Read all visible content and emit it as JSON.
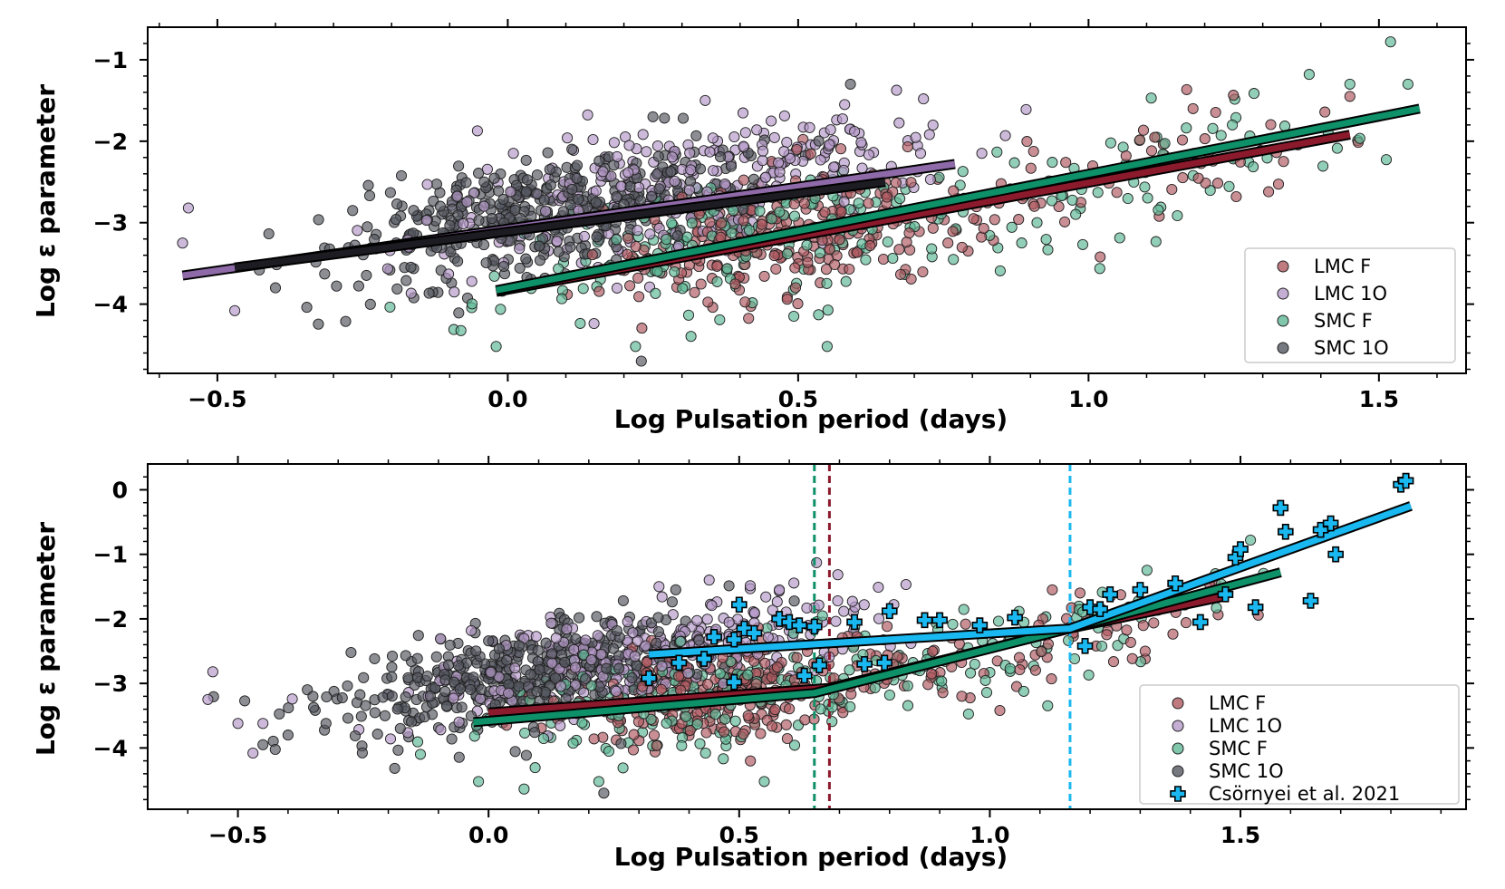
{
  "chart_data": [
    {
      "type": "scatter",
      "panel": "top",
      "xlabel": "Log Pulsation period (days)",
      "ylabel": "Log ε parameter",
      "xlim": [
        -0.62,
        1.65
      ],
      "ylim": [
        -4.85,
        -0.6
      ],
      "xticks": [
        -0.5,
        0.0,
        0.5,
        1.0,
        1.5
      ],
      "xtick_labels": [
        "−0.5",
        "0.0",
        "0.5",
        "1.0",
        "1.5"
      ],
      "yticks": [
        -1,
        -2,
        -3,
        -4
      ],
      "ytick_labels": [
        "−1",
        "−2",
        "−3",
        "−4"
      ],
      "legend_position": "lower-right",
      "series": [
        {
          "name": "LMC F",
          "color": "#b05a62",
          "clouds": [
            {
              "cx": 0.45,
              "cy": -3.15,
              "sx": 0.14,
              "sy": 0.38,
              "n": 240
            },
            {
              "cx": 0.85,
              "cy": -2.7,
              "sx": 0.18,
              "sy": 0.32,
              "n": 70
            },
            {
              "cx": 1.25,
              "cy": -2.1,
              "sx": 0.12,
              "sy": 0.3,
              "n": 25
            }
          ],
          "points": [
            [
              1.02,
              -3.42
            ],
            [
              1.18,
              -1.6
            ],
            [
              1.31,
              -2.62
            ],
            [
              1.45,
              -1.45
            ]
          ]
        },
        {
          "name": "LMC 1O",
          "color": "#b59ac9",
          "clouds": [
            {
              "cx": 0.25,
              "cy": -2.65,
              "sx": 0.2,
              "sy": 0.38,
              "n": 260
            },
            {
              "cx": 0.55,
              "cy": -2.2,
              "sx": 0.14,
              "sy": 0.3,
              "n": 60
            }
          ],
          "points": [
            [
              -0.55,
              -2.82
            ],
            [
              -0.56,
              -3.25
            ],
            [
              -0.47,
              -4.08
            ],
            [
              0.34,
              -1.5
            ],
            [
              0.58,
              -1.55
            ],
            [
              0.59,
              -1.85
            ]
          ]
        },
        {
          "name": "SMC F",
          "color": "#5fb896",
          "clouds": [
            {
              "cx": 0.35,
              "cy": -3.25,
              "sx": 0.2,
              "sy": 0.42,
              "n": 150
            },
            {
              "cx": 0.8,
              "cy": -2.85,
              "sx": 0.2,
              "sy": 0.4,
              "n": 70
            },
            {
              "cx": 1.25,
              "cy": -2.05,
              "sx": 0.16,
              "sy": 0.35,
              "n": 35
            }
          ],
          "points": [
            [
              -0.02,
              -4.52
            ],
            [
              0.22,
              -4.52
            ],
            [
              0.55,
              -4.52
            ],
            [
              1.38,
              -1.18
            ],
            [
              1.52,
              -0.78
            ],
            [
              1.45,
              -1.3
            ],
            [
              1.55,
              -1.3
            ]
          ]
        },
        {
          "name": "SMC 1O",
          "color": "#555861",
          "clouds": [
            {
              "cx": 0.0,
              "cy": -2.95,
              "sx": 0.16,
              "sy": 0.38,
              "n": 320
            },
            {
              "cx": 0.22,
              "cy": -2.6,
              "sx": 0.13,
              "sy": 0.35,
              "n": 90
            }
          ],
          "points": [
            [
              0.23,
              -4.7
            ],
            [
              0.25,
              -1.7
            ],
            [
              0.59,
              -1.3
            ],
            [
              -0.4,
              -3.8
            ]
          ]
        }
      ],
      "fit_lines": [
        {
          "name": "LMC F fit",
          "color": "#8b1a2c",
          "x": [
            -0.02,
            1.45
          ],
          "y": [
            -3.85,
            -1.92
          ]
        },
        {
          "name": "LMC 1O fit",
          "color": "#8e6aa8",
          "x": [
            -0.56,
            0.77
          ],
          "y": [
            -3.65,
            -2.28
          ]
        },
        {
          "name": "SMC F fit",
          "color": "#0e9068",
          "x": [
            -0.02,
            1.57
          ],
          "y": [
            -3.83,
            -1.6
          ]
        },
        {
          "name": "SMC 1O fit",
          "color": "#1c1c22",
          "x": [
            -0.47,
            0.65
          ],
          "y": [
            -3.55,
            -2.5
          ]
        }
      ],
      "legend": [
        "LMC F",
        "LMC 1O",
        "SMC F",
        "SMC 1O"
      ]
    },
    {
      "type": "scatter",
      "panel": "bottom",
      "xlabel": "Log Pulsation period (days)",
      "ylabel": "Log ε parameter",
      "xlim": [
        -0.68,
        1.95
      ],
      "ylim": [
        -4.95,
        0.4
      ],
      "xticks": [
        -0.5,
        0.0,
        0.5,
        1.0,
        1.5
      ],
      "xtick_labels": [
        "−0.5",
        "0.0",
        "0.5",
        "1.0",
        "1.5"
      ],
      "yticks": [
        0,
        -1,
        -2,
        -3,
        -4
      ],
      "ytick_labels": [
        "0",
        "−1",
        "−2",
        "−3",
        "−4"
      ],
      "legend_position": "lower-right",
      "vlines": [
        {
          "x": 0.65,
          "color": "#0e9068"
        },
        {
          "x": 0.68,
          "color": "#8b1a2c"
        },
        {
          "x": 1.16,
          "color": "#1ab8f0"
        }
      ],
      "series": [
        {
          "name": "LMC F",
          "color": "#b05a62",
          "clouds": [
            {
              "cx": 0.45,
              "cy": -3.15,
              "sx": 0.14,
              "sy": 0.38,
              "n": 240
            },
            {
              "cx": 0.85,
              "cy": -2.7,
              "sx": 0.18,
              "sy": 0.32,
              "n": 70
            },
            {
              "cx": 1.25,
              "cy": -2.1,
              "sx": 0.12,
              "sy": 0.3,
              "n": 25
            }
          ],
          "points": [
            [
              1.02,
              -3.42
            ],
            [
              1.18,
              -1.6
            ],
            [
              1.31,
              -2.62
            ],
            [
              1.45,
              -1.45
            ]
          ]
        },
        {
          "name": "LMC 1O",
          "color": "#b59ac9",
          "clouds": [
            {
              "cx": 0.25,
              "cy": -2.65,
              "sx": 0.2,
              "sy": 0.38,
              "n": 260
            },
            {
              "cx": 0.55,
              "cy": -2.2,
              "sx": 0.14,
              "sy": 0.3,
              "n": 60
            }
          ],
          "points": [
            [
              -0.55,
              -2.82
            ],
            [
              -0.56,
              -3.25
            ],
            [
              -0.47,
              -4.08
            ],
            [
              -0.45,
              -3.62
            ],
            [
              -0.5,
              -3.62
            ],
            [
              0.34,
              -1.5
            ],
            [
              0.58,
              -1.55
            ]
          ]
        },
        {
          "name": "SMC F",
          "color": "#5fb896",
          "clouds": [
            {
              "cx": 0.35,
              "cy": -3.25,
              "sx": 0.2,
              "sy": 0.42,
              "n": 150
            },
            {
              "cx": 0.8,
              "cy": -2.85,
              "sx": 0.2,
              "sy": 0.4,
              "n": 70
            },
            {
              "cx": 1.25,
              "cy": -2.05,
              "sx": 0.16,
              "sy": 0.35,
              "n": 35
            }
          ],
          "points": [
            [
              -0.02,
              -4.52
            ],
            [
              0.22,
              -4.52
            ],
            [
              0.55,
              -4.52
            ],
            [
              1.52,
              -0.78
            ],
            [
              1.45,
              -1.3
            ]
          ]
        },
        {
          "name": "SMC 1O",
          "color": "#555861",
          "clouds": [
            {
              "cx": 0.0,
              "cy": -2.95,
              "sx": 0.16,
              "sy": 0.38,
              "n": 320
            },
            {
              "cx": 0.22,
              "cy": -2.6,
              "sx": 0.13,
              "sy": 0.35,
              "n": 90
            }
          ],
          "points": [
            [
              0.23,
              -4.7
            ],
            [
              -0.4,
              -3.8
            ],
            [
              -0.45,
              -3.95
            ]
          ]
        }
      ],
      "crosses": {
        "name": "Csörnyei et al. 2021",
        "color": "#1ab8f0",
        "points": [
          [
            0.32,
            -2.92
          ],
          [
            0.38,
            -2.68
          ],
          [
            0.43,
            -2.62
          ],
          [
            0.45,
            -2.28
          ],
          [
            0.49,
            -2.32
          ],
          [
            0.5,
            -1.78
          ],
          [
            0.51,
            -2.15
          ],
          [
            0.53,
            -2.22
          ],
          [
            0.58,
            -2.0
          ],
          [
            0.6,
            -2.05
          ],
          [
            0.62,
            -2.1
          ],
          [
            0.65,
            -2.12
          ],
          [
            0.66,
            -2.72
          ],
          [
            0.63,
            -2.88
          ],
          [
            0.49,
            -2.98
          ],
          [
            0.73,
            -2.05
          ],
          [
            0.75,
            -2.7
          ],
          [
            0.79,
            -2.68
          ],
          [
            0.8,
            -1.88
          ],
          [
            0.87,
            -2.02
          ],
          [
            0.9,
            -2.02
          ],
          [
            0.98,
            -2.1
          ],
          [
            1.05,
            -1.98
          ],
          [
            1.19,
            -2.42
          ],
          [
            1.2,
            -1.82
          ],
          [
            1.22,
            -1.85
          ],
          [
            1.24,
            -1.62
          ],
          [
            1.3,
            -1.55
          ],
          [
            1.37,
            -1.45
          ],
          [
            1.42,
            -2.05
          ],
          [
            1.47,
            -1.62
          ],
          [
            1.49,
            -1.05
          ],
          [
            1.5,
            -0.92
          ],
          [
            1.53,
            -1.82
          ],
          [
            1.58,
            -0.28
          ],
          [
            1.59,
            -0.65
          ],
          [
            1.64,
            -1.72
          ],
          [
            1.66,
            -0.62
          ],
          [
            1.68,
            -0.52
          ],
          [
            1.69,
            -1.0
          ],
          [
            1.82,
            0.08
          ],
          [
            1.83,
            0.14
          ]
        ]
      },
      "fit_lines": [
        {
          "name": "LMC F fit",
          "color": "#8b1a2c",
          "x": [
            0.0,
            0.68,
            1.16,
            1.47
          ],
          "y": [
            -3.45,
            -3.07,
            -2.15,
            -1.65
          ]
        },
        {
          "name": "SMC F fit",
          "color": "#0e9068",
          "x": [
            -0.03,
            0.65,
            1.16,
            1.58
          ],
          "y": [
            -3.6,
            -3.15,
            -2.15,
            -1.28
          ]
        },
        {
          "name": "Csörnyei fit",
          "color": "#1ab8f0",
          "x": [
            0.32,
            1.16,
            1.84
          ],
          "y": [
            -2.55,
            -2.15,
            -0.25
          ]
        }
      ],
      "legend": [
        "LMC F",
        "LMC 1O",
        "SMC F",
        "SMC 1O",
        "Csörnyei et al. 2021"
      ]
    }
  ]
}
